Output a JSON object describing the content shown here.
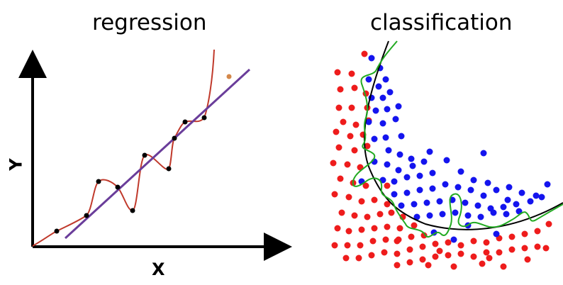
{
  "regression": {
    "title": "regression",
    "x_label": "X",
    "y_label": "Y",
    "points": [
      [
        80,
        326
      ],
      [
        122,
        304
      ],
      [
        139,
        256
      ],
      [
        166,
        264
      ],
      [
        187,
        297
      ],
      [
        204,
        219
      ],
      [
        238,
        238
      ],
      [
        246,
        195
      ],
      [
        261,
        172
      ],
      [
        288,
        166
      ]
    ],
    "outlier": [
      323,
      108
    ],
    "colors": {
      "axis": "#000000",
      "fit_line": "#6a3d9a",
      "overfit_curve": "#c0392b",
      "point": "#000000",
      "outlier": "#d4884a"
    }
  },
  "classification": {
    "title": "classification",
    "colors": {
      "class_a": "#ee1c1c",
      "class_b": "#1414ee",
      "smooth_boundary": "#000000",
      "overfit_boundary": "#22aa22"
    }
  }
}
